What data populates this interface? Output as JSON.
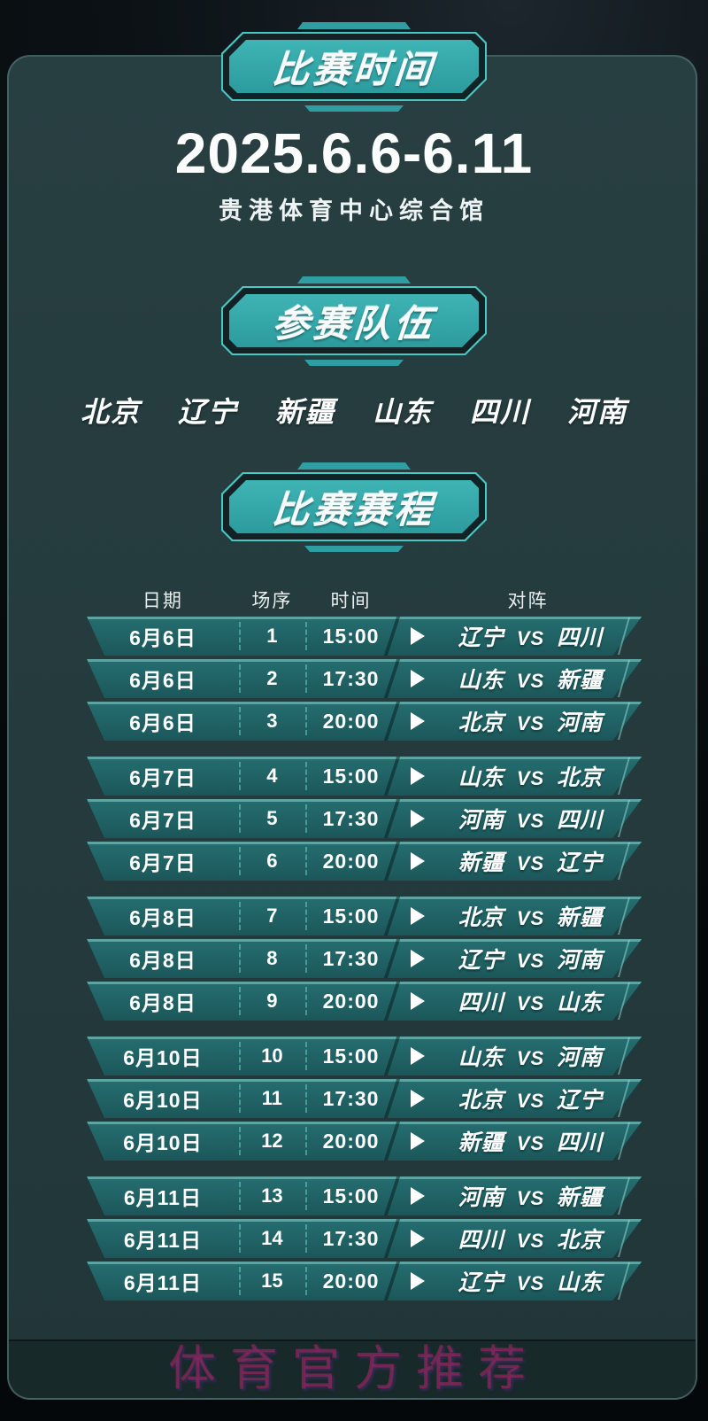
{
  "poster": {
    "badges": {
      "time": "比赛时间",
      "teams": "参赛队伍",
      "schedule": "比赛赛程"
    },
    "event": {
      "date_range": "2025.6.6-6.11",
      "venue": "贵港体育中心综合馆"
    },
    "teams": [
      "北京",
      "辽宁",
      "新疆",
      "山东",
      "四川",
      "河南"
    ],
    "schedule": {
      "columns": {
        "date": "日期",
        "match_no": "场序",
        "time": "时间",
        "matchup": "对阵"
      },
      "vs_label": "VS",
      "play_icon": "play-triangle",
      "groups": [
        {
          "date": "6月6日",
          "matches": [
            {
              "no": "1",
              "time": "15:00",
              "home": "辽宁",
              "away": "四川"
            },
            {
              "no": "2",
              "time": "17:30",
              "home": "山东",
              "away": "新疆"
            },
            {
              "no": "3",
              "time": "20:00",
              "home": "北京",
              "away": "河南"
            }
          ]
        },
        {
          "date": "6月7日",
          "matches": [
            {
              "no": "4",
              "time": "15:00",
              "home": "山东",
              "away": "北京"
            },
            {
              "no": "5",
              "time": "17:30",
              "home": "河南",
              "away": "四川"
            },
            {
              "no": "6",
              "time": "20:00",
              "home": "新疆",
              "away": "辽宁"
            }
          ]
        },
        {
          "date": "6月8日",
          "matches": [
            {
              "no": "7",
              "time": "15:00",
              "home": "北京",
              "away": "新疆"
            },
            {
              "no": "8",
              "time": "17:30",
              "home": "辽宁",
              "away": "河南"
            },
            {
              "no": "9",
              "time": "20:00",
              "home": "四川",
              "away": "山东"
            }
          ]
        },
        {
          "date": "6月10日",
          "matches": [
            {
              "no": "10",
              "time": "15:00",
              "home": "山东",
              "away": "河南"
            },
            {
              "no": "11",
              "time": "17:30",
              "home": "北京",
              "away": "辽宁"
            },
            {
              "no": "12",
              "time": "20:00",
              "home": "新疆",
              "away": "四川"
            }
          ]
        },
        {
          "date": "6月11日",
          "matches": [
            {
              "no": "13",
              "time": "15:00",
              "home": "河南",
              "away": "新疆"
            },
            {
              "no": "14",
              "time": "17:30",
              "home": "四川",
              "away": "北京"
            },
            {
              "no": "15",
              "time": "20:00",
              "home": "辽宁",
              "away": "山东"
            }
          ]
        }
      ]
    },
    "watermark": "体育官方推荐",
    "colors": {
      "badge_fill": "#35aaac",
      "badge_outline": "#49c7c5",
      "row_fill": "#216568",
      "card_bg": "#253c3e",
      "text": "#ffffff",
      "watermark_color": "#ba2660"
    }
  }
}
